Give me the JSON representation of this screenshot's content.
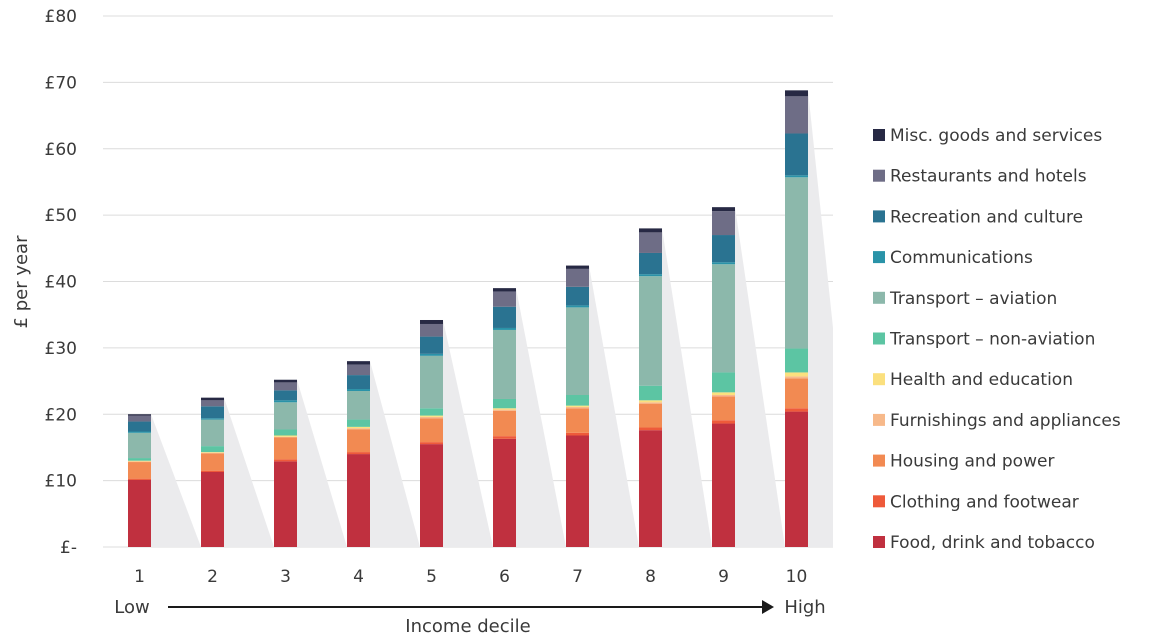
{
  "chart_data": {
    "type": "bar",
    "stacked": true,
    "title": "",
    "xlabel": "Income decile",
    "ylabel": "£ per year",
    "x_axis_low_label": "Low",
    "x_axis_high_label": "High",
    "categories": [
      "1",
      "2",
      "3",
      "4",
      "5",
      "6",
      "7",
      "8",
      "9",
      "10"
    ],
    "ylim": [
      0,
      80
    ],
    "yticks": [
      0,
      10,
      20,
      30,
      40,
      50,
      60,
      70,
      80
    ],
    "ytick_labels": [
      "£-",
      "£10",
      "£20",
      "£30",
      "£40",
      "£50",
      "£60",
      "£70",
      "£80"
    ],
    "grid": true,
    "legend_position": "right",
    "series": [
      {
        "name": "Food, drink and tobacco",
        "color": "#c0303f",
        "values": [
          10.1,
          11.3,
          12.9,
          14.0,
          15.5,
          16.3,
          16.8,
          17.6,
          18.6,
          20.4
        ]
      },
      {
        "name": "Clothing and footwear",
        "color": "#ee5a3a",
        "values": [
          0.2,
          0.2,
          0.3,
          0.3,
          0.3,
          0.4,
          0.4,
          0.4,
          0.5,
          0.5
        ]
      },
      {
        "name": "Housing and power",
        "color": "#f28a52",
        "values": [
          2.5,
          2.6,
          3.3,
          3.4,
          3.6,
          3.8,
          3.7,
          3.6,
          3.6,
          4.5
        ]
      },
      {
        "name": "Furnishings and appliances",
        "color": "#f7b98a",
        "values": [
          0.1,
          0.1,
          0.1,
          0.2,
          0.2,
          0.2,
          0.2,
          0.2,
          0.2,
          0.3
        ]
      },
      {
        "name": "Health and education",
        "color": "#fbe07e",
        "values": [
          0.1,
          0.1,
          0.2,
          0.2,
          0.2,
          0.2,
          0.2,
          0.3,
          0.4,
          0.6
        ]
      },
      {
        "name": "Transport – non-aviation",
        "color": "#5cc5a3",
        "values": [
          0.4,
          0.9,
          0.9,
          1.1,
          1.1,
          1.4,
          1.6,
          2.2,
          3.0,
          3.6
        ]
      },
      {
        "name": "Transport – aviation",
        "color": "#8cb8ab",
        "values": [
          3.8,
          4.0,
          4.1,
          4.3,
          7.9,
          10.4,
          13.2,
          16.5,
          16.3,
          25.8
        ]
      },
      {
        "name": "Communications",
        "color": "#2a93a8",
        "values": [
          0.2,
          0.2,
          0.3,
          0.3,
          0.3,
          0.3,
          0.3,
          0.3,
          0.3,
          0.3
        ]
      },
      {
        "name": "Recreation and culture",
        "color": "#2a7391",
        "values": [
          1.5,
          1.8,
          1.5,
          2.1,
          2.6,
          3.2,
          2.8,
          3.2,
          4.1,
          6.3
        ]
      },
      {
        "name": "Restaurants and hotels",
        "color": "#6e6d86",
        "values": [
          0.9,
          0.9,
          1.2,
          1.6,
          1.9,
          2.3,
          2.7,
          3.1,
          3.6,
          5.6
        ]
      },
      {
        "name": "Misc. goods and services",
        "color": "#272944",
        "values": [
          0.2,
          0.4,
          0.4,
          0.5,
          0.6,
          0.5,
          0.5,
          0.6,
          0.6,
          0.9
        ]
      }
    ]
  }
}
